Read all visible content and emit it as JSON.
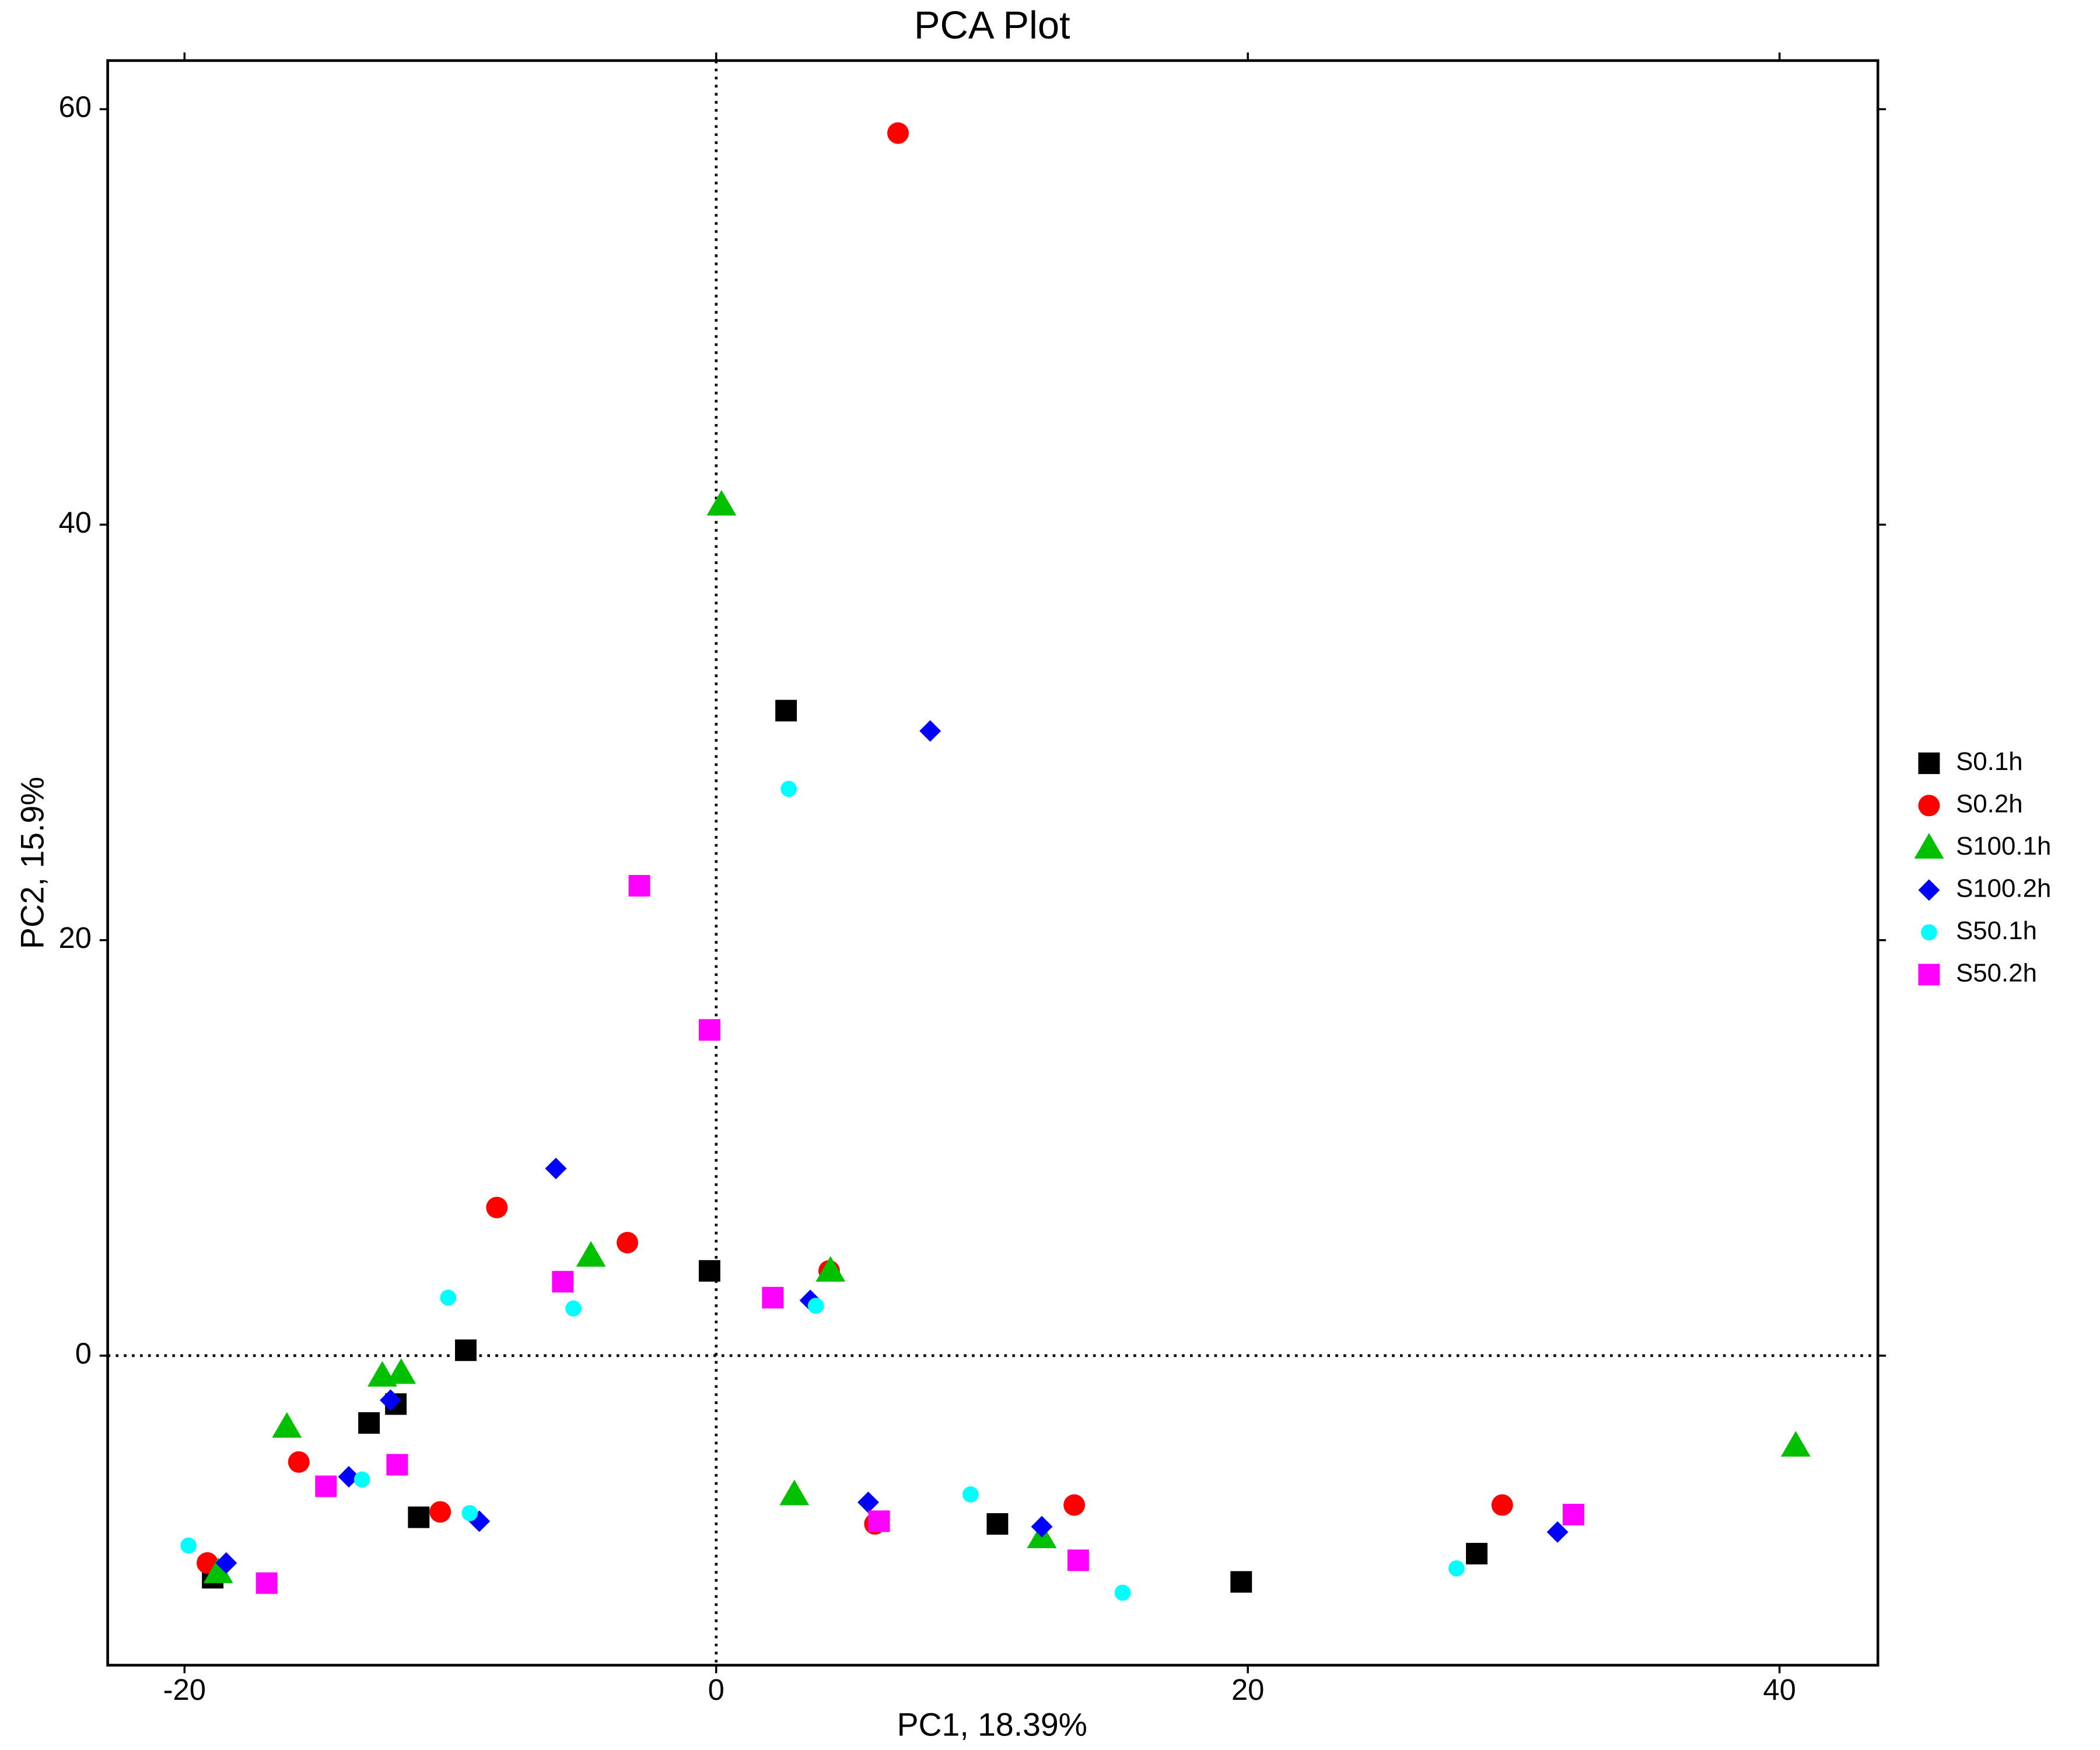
{
  "chart_data": {
    "type": "scatter",
    "title": "PCA Plot",
    "x_label": "PC1, 18.39%",
    "y_label": "PC2, 15.9%",
    "xlim": [
      -22.89,
      43.7
    ],
    "ylim": [
      -14.9,
      62.34
    ],
    "xticks": [
      -20,
      0,
      20,
      40
    ],
    "yticks": [
      0,
      20,
      40,
      60
    ],
    "reference_lines": {
      "x": 0,
      "y": 0
    },
    "legend": "right",
    "series": [
      {
        "name": "S0.1h",
        "color": "#000000",
        "marker": "square",
        "x": [
          -18.94,
          -13.06,
          -12.05,
          -11.19,
          -9.42,
          -0.25,
          2.63,
          10.58,
          19.75,
          28.61
        ],
        "y": [
          -10.69,
          -3.24,
          -2.33,
          -7.78,
          0.26,
          4.08,
          31.05,
          -8.1,
          -10.89,
          -9.53
        ]
      },
      {
        "name": "S0.2h",
        "color": "#ff0000",
        "marker": "circle",
        "x": [
          -19.14,
          -15.7,
          -10.38,
          -8.25,
          -3.34,
          4.25,
          5.97,
          6.84,
          13.47,
          29.57
        ],
        "y": [
          -9.98,
          -5.12,
          -7.52,
          7.13,
          5.44,
          4.08,
          -8.1,
          58.85,
          -7.19,
          -7.19
        ]
      },
      {
        "name": "S100.1h",
        "color": "#00c000",
        "marker": "triangle",
        "x": [
          -18.73,
          -16.15,
          -12.56,
          -11.85,
          -4.71,
          0.2,
          2.94,
          4.3,
          12.25,
          40.61
        ],
        "y": [
          -10.43,
          -3.43,
          -0.97,
          -0.84,
          4.8,
          40.96,
          -6.68,
          4.08,
          -8.75,
          -4.34
        ]
      },
      {
        "name": "S100.2h",
        "color": "#0000ff",
        "marker": "diamond",
        "x": [
          -18.43,
          -13.82,
          -12.25,
          -8.91,
          -6.03,
          3.54,
          5.72,
          8.05,
          12.25,
          31.65
        ],
        "y": [
          -9.98,
          -5.83,
          -2.14,
          -7.97,
          9.01,
          2.66,
          -7.06,
          30.07,
          -8.23,
          -8.49
        ]
      },
      {
        "name": "S50.1h",
        "color": "#00ffff",
        "marker": "small-circle",
        "x": [
          -19.85,
          -13.32,
          -10.08,
          -9.27,
          -5.37,
          2.73,
          3.75,
          9.57,
          15.29,
          27.85
        ],
        "y": [
          -9.14,
          -5.96,
          2.79,
          -7.58,
          2.27,
          27.28,
          2.4,
          -6.68,
          -11.41,
          -10.24
        ]
      },
      {
        "name": "S50.2h",
        "color": "#ff00ff",
        "marker": "square",
        "x": [
          -16.91,
          -14.68,
          -12.0,
          -5.77,
          -2.89,
          -0.25,
          2.13,
          6.13,
          13.62,
          32.25
        ],
        "y": [
          -10.95,
          -6.29,
          -5.25,
          3.56,
          22.62,
          15.68,
          2.79,
          -7.97,
          -9.85,
          -7.65
        ]
      }
    ]
  }
}
